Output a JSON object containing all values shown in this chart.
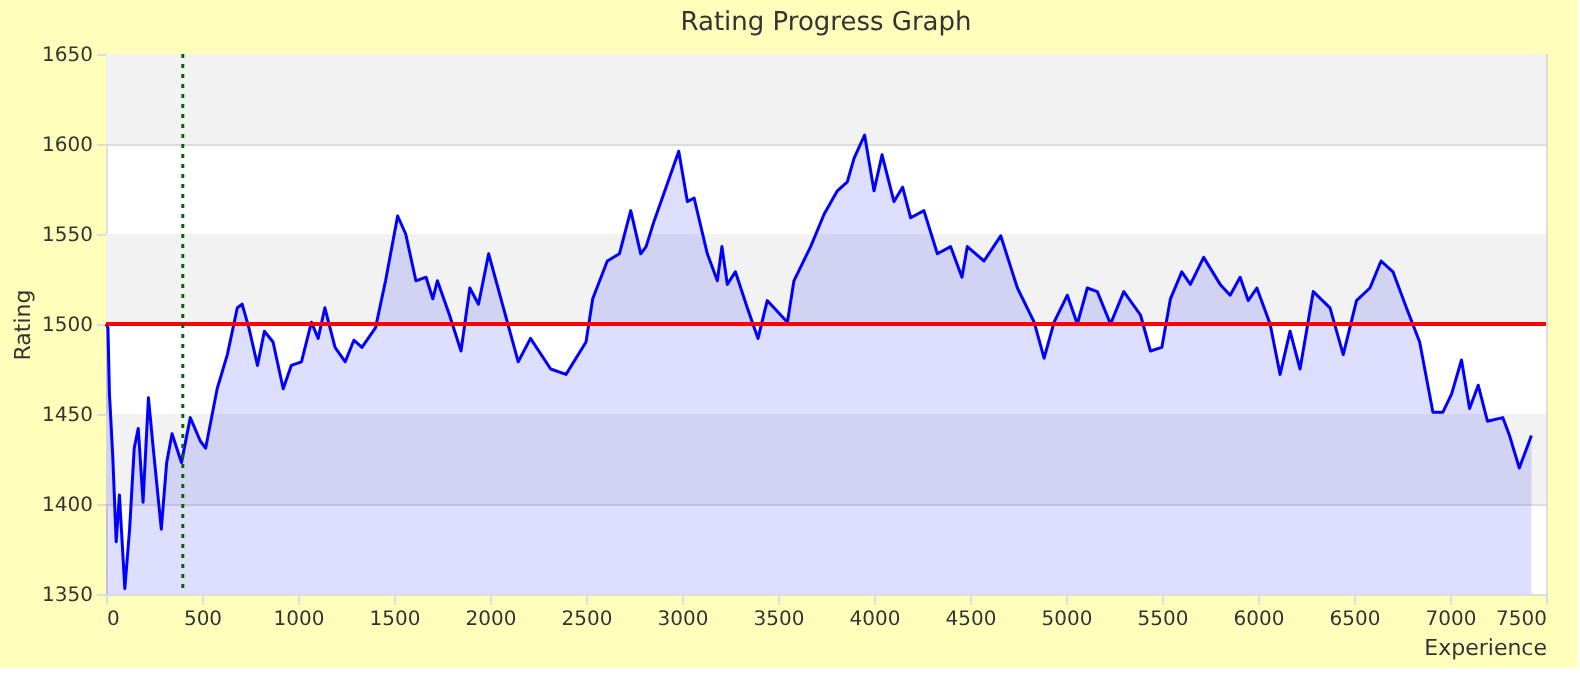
{
  "chart_data": {
    "type": "area",
    "title": "Rating Progress Graph",
    "xlabel": "Experience",
    "ylabel": "Rating",
    "xlim": [
      0,
      7500
    ],
    "xticks": [
      0,
      500,
      1000,
      1500,
      2000,
      2500,
      3000,
      3500,
      4000,
      4500,
      5000,
      5500,
      6000,
      6500,
      7000,
      7500
    ],
    "ylim": [
      1350,
      1650
    ],
    "yticks": [
      1350,
      1400,
      1450,
      1500,
      1550,
      1600,
      1650
    ],
    "grid": "y",
    "ref_lines": [
      {
        "axis": "y",
        "value": 1500,
        "color": "#ff0000",
        "line_style": "solid"
      },
      {
        "axis": "x",
        "value": 400,
        "color": "#006600",
        "line_style": "dotted"
      }
    ],
    "bands": [
      {
        "axis": "y",
        "from": 1600,
        "to": 1650,
        "color": "#f2f2f2"
      },
      {
        "axis": "y",
        "from": 1500,
        "to": 1550,
        "color": "#f2f2f2"
      },
      {
        "axis": "y",
        "from": 1400,
        "to": 1450,
        "color": "#f2f2f2"
      }
    ],
    "series": [
      {
        "color": "#0000ff",
        "x": [
          0,
          10,
          18,
          35,
          53,
          70,
          98,
          123,
          147,
          168,
          193,
          221,
          246,
          288,
          316,
          344,
          393,
          439,
          491,
          519,
          579,
          632,
          684,
          709,
          744,
          789,
          825,
          870,
          923,
          965,
          1018,
          1070,
          1105,
          1140,
          1193,
          1246,
          1291,
          1333,
          1404,
          1456,
          1519,
          1561,
          1614,
          1667,
          1702,
          1726,
          1789,
          1849,
          1895,
          1940,
          1993,
          2070,
          2147,
          2211,
          2316,
          2396,
          2500,
          2535,
          2611,
          2674,
          2733,
          2785,
          2813,
          2854,
          2924,
          2983,
          3028,
          3063,
          3132,
          3184,
          3208,
          3236,
          3278,
          3340,
          3396,
          3444,
          3549,
          3583,
          3670,
          3740,
          3809,
          3861,
          3896,
          3951,
          4000,
          4042,
          4104,
          4149,
          4191,
          4260,
          4330,
          4399,
          4458,
          4486,
          4573,
          4660,
          4747,
          4834,
          4886,
          4938,
          5007,
          5059,
          5111,
          5163,
          5232,
          5301,
          5388,
          5440,
          5499,
          5544,
          5603,
          5648,
          5717,
          5803,
          5855,
          5907,
          5949,
          5994,
          6063,
          6115,
          6167,
          6219,
          6288,
          6375,
          6444,
          6513,
          6583,
          6641,
          6703,
          6773,
          6842,
          6911,
          6963,
          7008,
          7060,
          7102,
          7147,
          7195,
          7275,
          7310,
          7361,
          7424
        ],
        "values": [
          1500,
          1498,
          1461,
          1427,
          1379,
          1405,
          1353,
          1386,
          1431,
          1442,
          1401,
          1459,
          1431,
          1386,
          1423,
          1439,
          1423,
          1448,
          1435,
          1431,
          1464,
          1483,
          1509,
          1511,
          1498,
          1477,
          1496,
          1490,
          1464,
          1477,
          1479,
          1501,
          1492,
          1509,
          1487,
          1479,
          1491,
          1487,
          1498,
          1524,
          1560,
          1550,
          1524,
          1526,
          1514,
          1524,
          1505,
          1485,
          1520,
          1511,
          1539,
          1509,
          1479,
          1492,
          1475,
          1472,
          1490,
          1514,
          1535,
          1539,
          1563,
          1539,
          1543,
          1557,
          1578,
          1596,
          1568,
          1570,
          1539,
          1524,
          1543,
          1522,
          1529,
          1509,
          1492,
          1513,
          1501,
          1524,
          1543,
          1561,
          1574,
          1579,
          1592,
          1605,
          1574,
          1594,
          1568,
          1576,
          1559,
          1563,
          1539,
          1543,
          1526,
          1543,
          1535,
          1549,
          1520,
          1501,
          1481,
          1501,
          1516,
          1500,
          1520,
          1518,
          1500,
          1518,
          1505,
          1485,
          1487,
          1514,
          1529,
          1522,
          1537,
          1522,
          1516,
          1526,
          1513,
          1520,
          1500,
          1472,
          1496,
          1475,
          1518,
          1509,
          1483,
          1513,
          1520,
          1535,
          1529,
          1509,
          1490,
          1451,
          1451,
          1461,
          1480,
          1453,
          1466,
          1446,
          1448,
          1438,
          1420,
          1438
        ]
      }
    ]
  }
}
